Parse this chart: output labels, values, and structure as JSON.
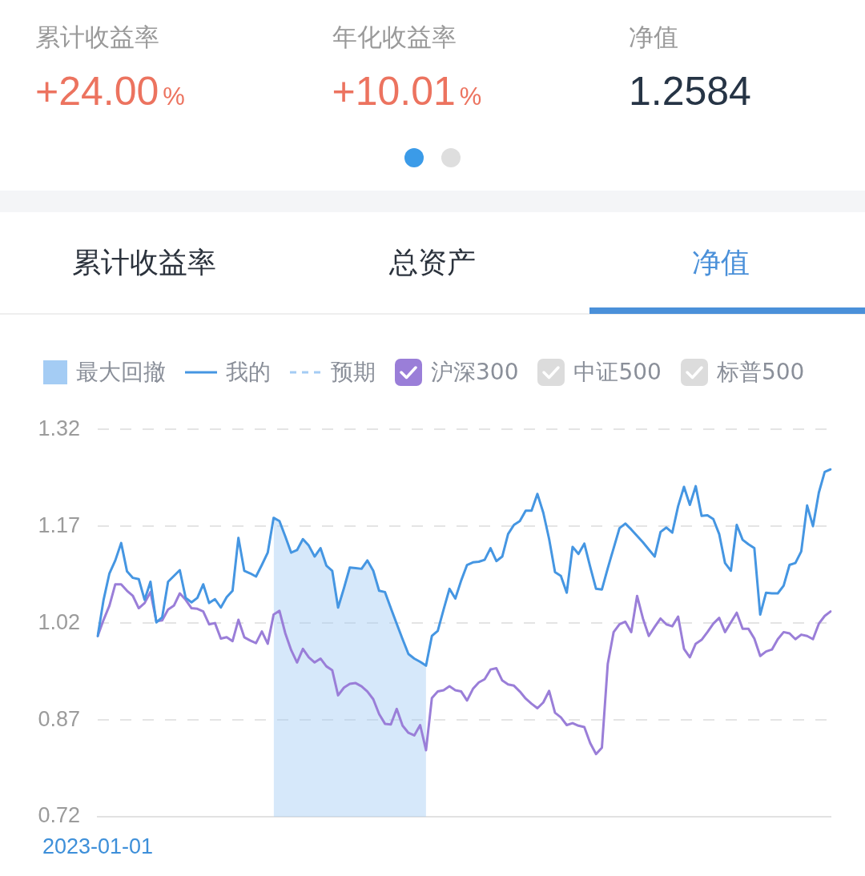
{
  "chart_data": [
    {
      "type": "other",
      "annotations": [
        "累计收益率",
        "+24.00%",
        "年化收益率",
        "+10.01%",
        "净值",
        "1.2584"
      ],
      "colors": [
        "#ec735f",
        "#ec735f",
        "#263445"
      ]
    },
    {
      "type": "line",
      "title": "净值",
      "annotations": [
        "累计收益率",
        "总资产"
      ],
      "categories": [
        "2023-01-01",
        null,
        null,
        null,
        null,
        null,
        null,
        null,
        null,
        null,
        null,
        null,
        null,
        null,
        null,
        null,
        null,
        null,
        null,
        null,
        null,
        null,
        null,
        null,
        null,
        null,
        null,
        null,
        null,
        null,
        null,
        null,
        null,
        null,
        null,
        null,
        null,
        null,
        null,
        null,
        null,
        null,
        null,
        null,
        null,
        null,
        null,
        null,
        null,
        null,
        null,
        null,
        null,
        null,
        null,
        null,
        null,
        null,
        null,
        null,
        null,
        null,
        null,
        null,
        null,
        null,
        null,
        null,
        null,
        null,
        null,
        null,
        null,
        null,
        null,
        null,
        null,
        null,
        null,
        null,
        null,
        null,
        null,
        null,
        null,
        null,
        null,
        null,
        null,
        null,
        null,
        null,
        null,
        null,
        null,
        null,
        null,
        null,
        null,
        null,
        null,
        null,
        null,
        null,
        null,
        null,
        null,
        null,
        null,
        null,
        null,
        null,
        null,
        null,
        null,
        null,
        null,
        null,
        null,
        null,
        null,
        null,
        null,
        null,
        null,
        null
      ],
      "series": [
        {
          "name": "最大回撤",
          "type": "area",
          "color": "#a4ccf4",
          "values": [
            null,
            null,
            null,
            null,
            null,
            null,
            null,
            null,
            null,
            null,
            null,
            null,
            null,
            null,
            null,
            null,
            null,
            null,
            null,
            null,
            null,
            null,
            null,
            null,
            null,
            null,
            null,
            null,
            null,
            null,
            1.183,
            1.178,
            1.154,
            1.129,
            1.133,
            1.15,
            1.14,
            1.123,
            1.136,
            1.109,
            1.101,
            1.044,
            1.074,
            1.106,
            1.105,
            1.104,
            1.117,
            1.101,
            1.07,
            1.068,
            1.043,
            1.019,
            0.995,
            0.972,
            0.965,
            0.96,
            0.954,
            null,
            null,
            null,
            null,
            null,
            null,
            null,
            null,
            null,
            null,
            null,
            null,
            null,
            null,
            null,
            null,
            null,
            null,
            null,
            null,
            null,
            null,
            null,
            null,
            null,
            null,
            null,
            null,
            null,
            null,
            null,
            null,
            null,
            null,
            null,
            null,
            null,
            null,
            null,
            null,
            null,
            null,
            null,
            null,
            null,
            null,
            null,
            null,
            null,
            null,
            null,
            null,
            null,
            null,
            null,
            null,
            null,
            null,
            null,
            null,
            null,
            null,
            null,
            null,
            null,
            null,
            null,
            null,
            null
          ]
        },
        {
          "name": "我的",
          "type": "line",
          "color": "#4596e2",
          "line_style": "solid",
          "values": [
            1.0,
            1.056,
            1.097,
            1.117,
            1.144,
            1.1,
            1.09,
            1.088,
            1.056,
            1.084,
            1.021,
            1.029,
            1.084,
            1.093,
            1.102,
            1.059,
            1.052,
            1.059,
            1.08,
            1.051,
            1.057,
            1.044,
            1.06,
            1.07,
            1.152,
            1.101,
            1.097,
            1.092,
            1.11,
            1.129,
            1.183,
            1.178,
            1.154,
            1.129,
            1.133,
            1.15,
            1.14,
            1.123,
            1.136,
            1.109,
            1.101,
            1.044,
            1.074,
            1.106,
            1.105,
            1.104,
            1.117,
            1.101,
            1.07,
            1.068,
            1.043,
            1.019,
            0.995,
            0.972,
            0.965,
            0.96,
            0.954,
            1.0,
            1.008,
            1.041,
            1.073,
            1.058,
            1.086,
            1.11,
            1.114,
            1.115,
            1.118,
            1.136,
            1.116,
            1.123,
            1.158,
            1.172,
            1.178,
            1.194,
            1.194,
            1.22,
            1.191,
            1.15,
            1.099,
            1.093,
            1.067,
            1.138,
            1.127,
            1.143,
            1.107,
            1.073,
            1.072,
            1.105,
            1.136,
            1.167,
            1.174,
            1.165,
            1.155,
            1.145,
            1.134,
            1.123,
            1.161,
            1.168,
            1.16,
            1.201,
            1.231,
            1.203,
            1.232,
            1.186,
            1.187,
            1.181,
            1.158,
            1.113,
            1.101,
            1.172,
            1.149,
            1.142,
            1.136,
            1.033,
            1.067,
            1.066,
            1.066,
            1.078,
            1.11,
            1.113,
            1.131,
            1.202,
            1.17,
            1.222,
            1.254,
            1.258
          ]
        },
        {
          "name": "预期",
          "type": "line",
          "color": "#a4ccf4",
          "line_style": "dashed",
          "values": [
            null,
            null,
            null,
            null,
            null,
            null,
            null,
            null,
            null,
            null,
            null,
            null,
            null,
            null,
            null,
            null,
            null,
            null,
            null,
            null,
            null,
            null,
            null,
            null,
            null,
            null,
            null,
            null,
            null,
            null,
            null,
            null,
            null,
            null,
            null,
            null,
            null,
            null,
            null,
            null,
            null,
            null,
            null,
            null,
            null,
            null,
            null,
            null,
            null,
            null,
            null,
            null,
            null,
            null,
            null,
            null,
            null,
            null,
            null,
            null,
            null,
            null,
            null,
            null,
            null,
            null,
            null,
            null,
            null,
            null,
            null,
            null,
            null,
            null,
            null,
            null,
            null,
            null,
            null,
            null,
            null,
            null,
            null,
            null,
            null,
            null,
            null,
            null,
            null,
            null,
            null,
            null,
            null,
            null,
            null,
            null,
            null,
            null,
            null,
            null,
            null,
            null,
            null,
            null,
            null,
            null,
            null,
            null,
            null,
            null,
            null,
            null,
            null,
            null,
            null,
            null,
            null,
            null,
            null,
            null,
            null,
            null,
            null,
            null,
            null,
            null
          ]
        },
        {
          "name": "沪深300",
          "type": "line",
          "color": "#9a7ed8",
          "values": [
            1.0,
            1.025,
            1.047,
            1.08,
            1.08,
            1.07,
            1.062,
            1.043,
            1.051,
            1.068,
            1.023,
            1.024,
            1.041,
            1.047,
            1.066,
            1.056,
            1.043,
            1.042,
            1.038,
            1.018,
            1.02,
            0.996,
            0.998,
            0.992,
            1.025,
            0.998,
            0.993,
            0.989,
            1.007,
            0.988,
            1.033,
            1.039,
            1.004,
            0.978,
            0.959,
            0.98,
            0.967,
            0.959,
            0.965,
            0.953,
            0.947,
            0.908,
            0.92,
            0.926,
            0.927,
            0.922,
            0.914,
            0.902,
            0.879,
            0.864,
            0.863,
            0.887,
            0.861,
            0.85,
            0.846,
            0.862,
            0.823,
            0.904,
            0.914,
            0.916,
            0.922,
            0.916,
            0.914,
            0.9,
            0.918,
            0.928,
            0.933,
            0.948,
            0.95,
            0.931,
            0.925,
            0.923,
            0.914,
            0.903,
            0.895,
            0.888,
            0.897,
            0.915,
            0.881,
            0.874,
            0.862,
            0.865,
            0.861,
            0.859,
            0.834,
            0.817,
            0.827,
            0.957,
            1.006,
            1.018,
            1.022,
            1.006,
            1.062,
            1.027,
            1.0,
            1.014,
            1.027,
            1.018,
            1.015,
            1.03,
            0.98,
            0.967,
            0.988,
            0.994,
            1.006,
            1.019,
            1.028,
            1.006,
            1.021,
            1.036,
            1.011,
            1.011,
            0.996,
            0.969,
            0.976,
            0.979,
            0.995,
            1.006,
            1.004,
            0.995,
            1.002,
            1.0,
            0.995,
            1.019,
            1.031,
            1.038
          ]
        },
        {
          "name": "中证500",
          "type": "line",
          "values": [
            null,
            null,
            null,
            null,
            null,
            null,
            null,
            null,
            null,
            null,
            null,
            null,
            null,
            null,
            null,
            null,
            null,
            null,
            null,
            null,
            null,
            null,
            null,
            null,
            null,
            null,
            null,
            null,
            null,
            null,
            null,
            null,
            null,
            null,
            null,
            null,
            null,
            null,
            null,
            null,
            null,
            null,
            null,
            null,
            null,
            null,
            null,
            null,
            null,
            null,
            null,
            null,
            null,
            null,
            null,
            null,
            null,
            null,
            null,
            null,
            null,
            null,
            null,
            null,
            null,
            null,
            null,
            null,
            null,
            null,
            null,
            null,
            null,
            null,
            null,
            null,
            null,
            null,
            null,
            null,
            null,
            null,
            null,
            null,
            null,
            null,
            null,
            null,
            null,
            null,
            null,
            null,
            null,
            null,
            null,
            null,
            null,
            null,
            null,
            null,
            null,
            null,
            null,
            null,
            null,
            null,
            null,
            null,
            null,
            null,
            null,
            null,
            null,
            null,
            null,
            null,
            null,
            null,
            null,
            null,
            null,
            null,
            null,
            null,
            null,
            null
          ]
        },
        {
          "name": "标普500",
          "type": "line",
          "values": [
            null,
            null,
            null,
            null,
            null,
            null,
            null,
            null,
            null,
            null,
            null,
            null,
            null,
            null,
            null,
            null,
            null,
            null,
            null,
            null,
            null,
            null,
            null,
            null,
            null,
            null,
            null,
            null,
            null,
            null,
            null,
            null,
            null,
            null,
            null,
            null,
            null,
            null,
            null,
            null,
            null,
            null,
            null,
            null,
            null,
            null,
            null,
            null,
            null,
            null,
            null,
            null,
            null,
            null,
            null,
            null,
            null,
            null,
            null,
            null,
            null,
            null,
            null,
            null,
            null,
            null,
            null,
            null,
            null,
            null,
            null,
            null,
            null,
            null,
            null,
            null,
            null,
            null,
            null,
            null,
            null,
            null,
            null,
            null,
            null,
            null,
            null,
            null,
            null,
            null,
            null,
            null,
            null,
            null,
            null,
            null,
            null,
            null,
            null,
            null,
            null,
            null,
            null,
            null,
            null,
            null,
            null,
            null,
            null,
            null,
            null,
            null,
            null,
            null,
            null,
            null,
            null,
            null,
            null,
            null,
            null,
            null,
            null,
            null,
            null,
            null
          ]
        }
      ],
      "ylim": [
        0.72,
        1.32
      ],
      "yticks": [
        0.72,
        0.87,
        1.02,
        1.17,
        1.32
      ],
      "grid": "y",
      "legend": "top"
    }
  ]
}
